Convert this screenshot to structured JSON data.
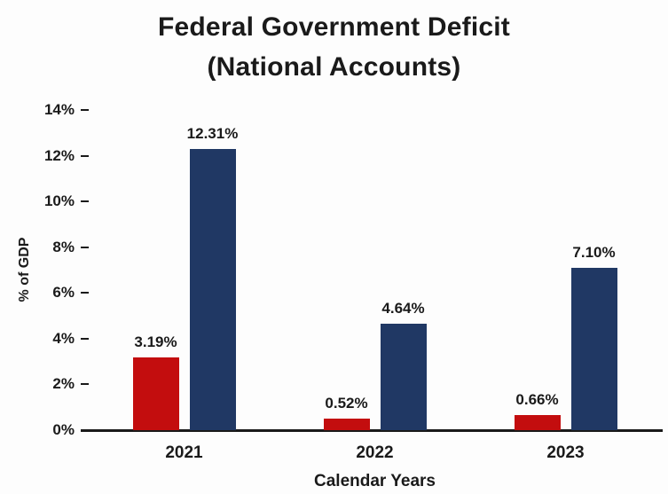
{
  "chart_data": {
    "type": "bar",
    "title": "Federal Government Deficit",
    "subtitle": "(National Accounts)",
    "xlabel": "Calendar Years",
    "ylabel": "% of GDP",
    "ylim": [
      0,
      14
    ],
    "grid": false,
    "legend_position": "none",
    "categories": [
      "2021",
      "2022",
      "2023"
    ],
    "yticks": [
      {
        "value": 0,
        "label": "0%"
      },
      {
        "value": 2,
        "label": "2%"
      },
      {
        "value": 4,
        "label": "4%"
      },
      {
        "value": 6,
        "label": "6%"
      },
      {
        "value": 8,
        "label": "8%"
      },
      {
        "value": 10,
        "label": "10%"
      },
      {
        "value": 12,
        "label": "12%"
      },
      {
        "value": 14,
        "label": "14%"
      }
    ],
    "series": [
      {
        "name": "red",
        "color": "#C30D0E",
        "values": [
          3.19,
          0.52,
          0.66
        ],
        "labels": [
          "3.19%",
          "0.52%",
          "0.66%"
        ]
      },
      {
        "name": "navy",
        "color": "#203864",
        "values": [
          12.31,
          4.64,
          7.1
        ],
        "labels": [
          "12.31%",
          "4.64%",
          "7.10%"
        ]
      }
    ]
  }
}
